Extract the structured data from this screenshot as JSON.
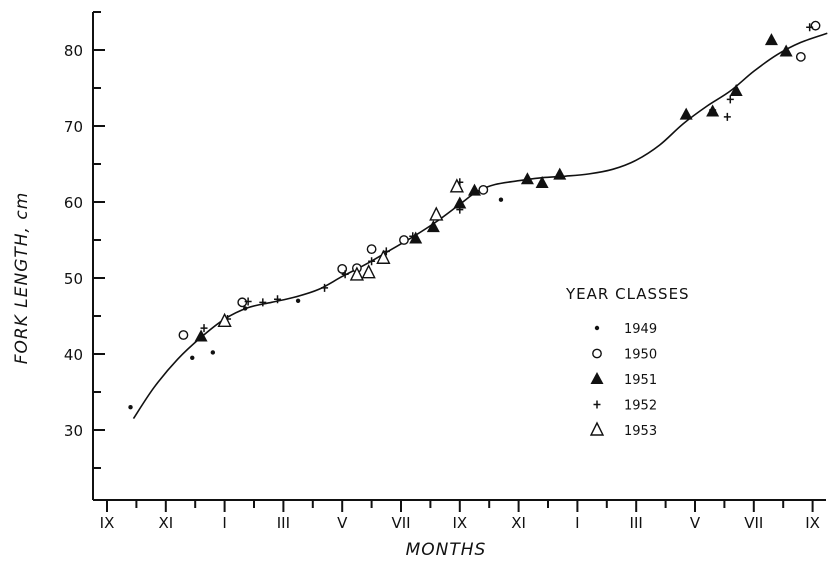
{
  "chart_data": {
    "type": "scatter",
    "xlabel": "MONTHS",
    "ylabel": "FORK LENGTH, cm",
    "x_ticks": [
      "IX",
      "XI",
      "I",
      "III",
      "V",
      "VII",
      "IX",
      "XI",
      "I",
      "III",
      "V",
      "VII",
      "IX"
    ],
    "xlim": [
      0,
      24.5
    ],
    "ylim": [
      25,
      87
    ],
    "y_ticks": [
      30,
      40,
      50,
      60,
      70,
      80
    ],
    "legend": {
      "title": "YEAR CLASSES",
      "placement": "right"
    },
    "series": [
      {
        "name": "1949",
        "marker": "dot",
        "points": [
          [
            0.8,
            33
          ],
          [
            2.9,
            39.5
          ],
          [
            3.6,
            40.2
          ],
          [
            4.7,
            46
          ],
          [
            6.5,
            47
          ],
          [
            13.4,
            60.3
          ]
        ]
      },
      {
        "name": "1950",
        "marker": "circle",
        "points": [
          [
            2.6,
            42.5
          ],
          [
            4.6,
            46.8
          ],
          [
            8.0,
            51.2
          ],
          [
            8.5,
            51.3
          ],
          [
            9.0,
            53.8
          ],
          [
            10.1,
            55
          ],
          [
            12.8,
            61.6
          ],
          [
            23.6,
            79.1
          ],
          [
            24.1,
            83.2
          ]
        ]
      },
      {
        "name": "1951",
        "marker": "triangle-filled",
        "points": [
          [
            3.2,
            42.3
          ],
          [
            10.5,
            55.2
          ],
          [
            11.1,
            56.7
          ],
          [
            12.0,
            59.8
          ],
          [
            12.5,
            61.5
          ],
          [
            14.3,
            63
          ],
          [
            14.8,
            62.5
          ],
          [
            15.4,
            63.6
          ],
          [
            19.7,
            71.5
          ],
          [
            20.6,
            71.9
          ],
          [
            21.4,
            74.6
          ],
          [
            22.6,
            81.3
          ],
          [
            23.1,
            79.8
          ]
        ]
      },
      {
        "name": "1952",
        "marker": "plus",
        "points": [
          [
            3.3,
            43.4
          ],
          [
            4.1,
            44.6
          ],
          [
            4.8,
            46.9
          ],
          [
            5.3,
            46.8
          ],
          [
            5.8,
            47.2
          ],
          [
            7.4,
            48.7
          ],
          [
            8.1,
            50.5
          ],
          [
            9.0,
            52.2
          ],
          [
            9.5,
            53.5
          ],
          [
            10.4,
            55.5
          ],
          [
            12.0,
            59
          ],
          [
            12.0,
            62.6
          ],
          [
            20.6,
            72.1
          ],
          [
            21.1,
            71.2
          ],
          [
            21.2,
            73.5
          ],
          [
            23.9,
            83
          ]
        ]
      },
      {
        "name": "1953",
        "marker": "triangle-open",
        "points": [
          [
            4.0,
            44.3
          ],
          [
            8.5,
            50.4
          ],
          [
            8.9,
            50.7
          ],
          [
            9.4,
            52.6
          ],
          [
            11.2,
            58.3
          ],
          [
            11.9,
            62
          ]
        ]
      }
    ],
    "trend_curve": [
      [
        0.9,
        31.5
      ],
      [
        1.6,
        35.6
      ],
      [
        2.4,
        39.3
      ],
      [
        3.2,
        42.2
      ],
      [
        4.0,
        44.6
      ],
      [
        4.8,
        46.1
      ],
      [
        5.6,
        46.8
      ],
      [
        6.4,
        47.5
      ],
      [
        7.2,
        48.5
      ],
      [
        8.0,
        50.2
      ],
      [
        8.8,
        51.8
      ],
      [
        9.6,
        53.6
      ],
      [
        10.4,
        55.4
      ],
      [
        11.2,
        57.4
      ],
      [
        12.0,
        59.7
      ],
      [
        12.6,
        61.4
      ],
      [
        13.2,
        62.3
      ],
      [
        14.0,
        62.8
      ],
      [
        14.8,
        63.2
      ],
      [
        15.6,
        63.4
      ],
      [
        16.4,
        63.7
      ],
      [
        17.2,
        64.3
      ],
      [
        18.0,
        65.5
      ],
      [
        18.8,
        67.5
      ],
      [
        19.6,
        70.3
      ],
      [
        20.4,
        72.6
      ],
      [
        21.2,
        74.6
      ],
      [
        22.0,
        77.2
      ],
      [
        22.8,
        79.4
      ],
      [
        23.6,
        81.0
      ],
      [
        24.5,
        82.2
      ]
    ]
  }
}
